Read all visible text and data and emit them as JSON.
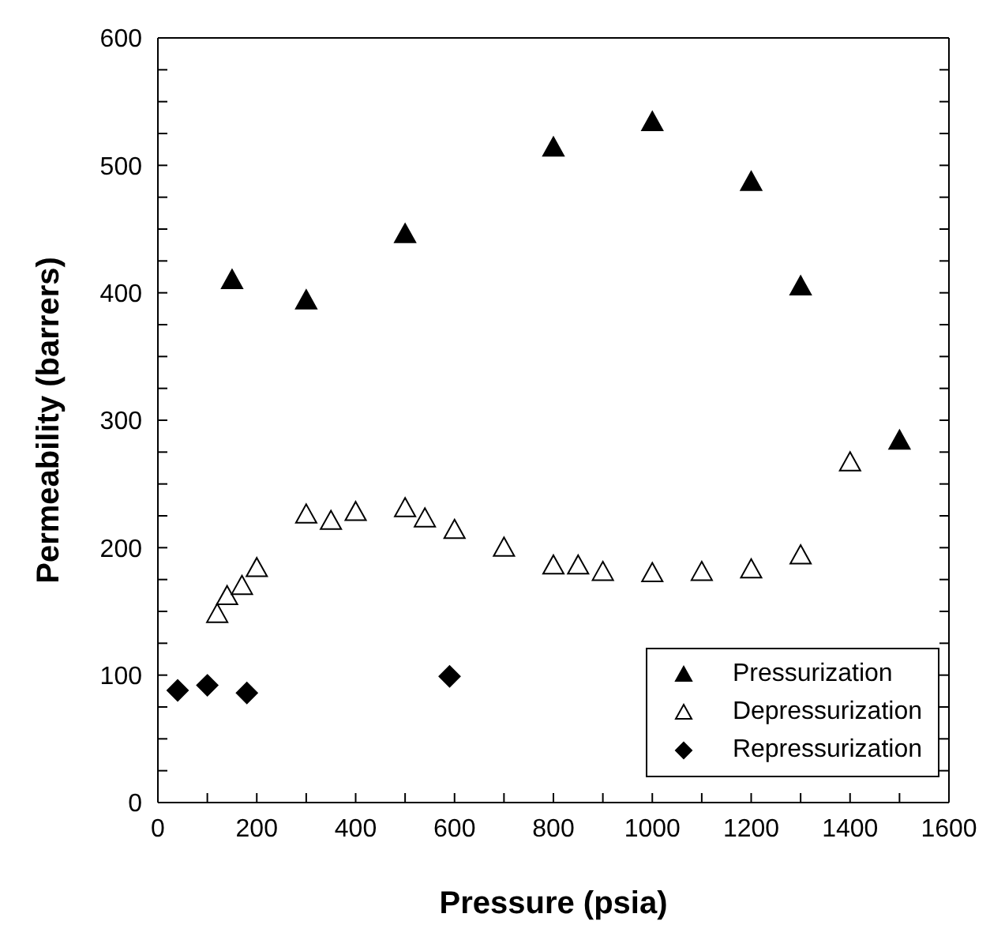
{
  "chart_data": {
    "type": "scatter",
    "xlabel": "Pressure (psia)",
    "ylabel": "Permeability (barrers)",
    "xlim": [
      0,
      1600
    ],
    "ylim": [
      0,
      600
    ],
    "xticks": [
      0,
      {
        "value": 100,
        "label": null
      },
      200,
      {
        "value": 300,
        "label": null
      },
      400,
      {
        "value": 500,
        "label": null
      },
      600,
      {
        "value": 700,
        "label": null
      },
      800,
      {
        "value": 900,
        "label": null
      },
      1000,
      {
        "value": 1100,
        "label": null
      },
      1200,
      {
        "value": 1300,
        "label": null
      },
      1400,
      {
        "value": 1500,
        "label": null
      },
      1600
    ],
    "yticks": [
      0,
      {
        "value": 25,
        "label": null
      },
      {
        "value": 50,
        "label": null
      },
      {
        "value": 75,
        "label": null
      },
      100,
      {
        "value": 125,
        "label": null
      },
      {
        "value": 150,
        "label": null
      },
      {
        "value": 175,
        "label": null
      },
      200,
      {
        "value": 225,
        "label": null
      },
      {
        "value": 250,
        "label": null
      },
      {
        "value": 275,
        "label": null
      },
      300,
      {
        "value": 325,
        "label": null
      },
      {
        "value": 350,
        "label": null
      },
      {
        "value": 375,
        "label": null
      },
      400,
      {
        "value": 425,
        "label": null
      },
      {
        "value": 450,
        "label": null
      },
      {
        "value": 475,
        "label": null
      },
      500,
      {
        "value": 525,
        "label": null
      },
      {
        "value": 550,
        "label": null
      },
      {
        "value": 575,
        "label": null
      },
      600
    ],
    "legend": "bottom right",
    "series": [
      {
        "name": "Pressurization",
        "color": "#000000",
        "marker": "triangle",
        "x": [
          150,
          300,
          500,
          800,
          1000,
          1200,
          1300,
          1500
        ],
        "values": [
          410,
          394,
          446,
          514,
          534,
          487,
          405,
          284
        ]
      },
      {
        "name": "Depressurization",
        "color": "#ffffff",
        "marker": "triangle",
        "x": [
          120,
          140,
          170,
          200,
          300,
          350,
          400,
          500,
          540,
          600,
          700,
          800,
          850,
          900,
          1000,
          1100,
          1200,
          1300,
          1400
        ],
        "values": [
          148,
          162,
          170,
          184,
          226,
          221,
          228,
          231,
          223,
          214,
          200,
          186,
          186,
          181,
          180,
          181,
          183,
          194,
          267
        ]
      },
      {
        "name": "Repressurization",
        "color": "#000000",
        "marker": "diamond",
        "x": [
          40,
          100,
          180,
          590
        ],
        "values": [
          88,
          92,
          86,
          99
        ]
      }
    ]
  }
}
